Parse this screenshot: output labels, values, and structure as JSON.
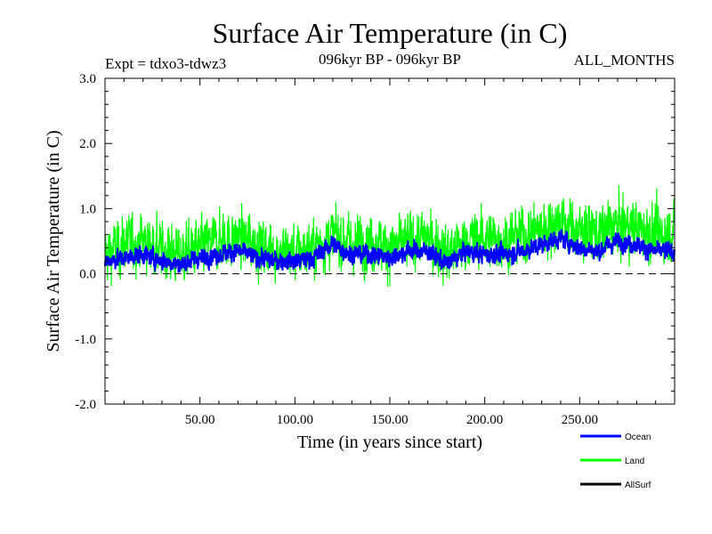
{
  "chart_data": {
    "type": "line",
    "title": "Surface Air Temperature (in C)",
    "subtitle_left": "Expt = tdxo3-tdwz3",
    "subtitle_center": "096kyr BP - 096kyr BP",
    "subtitle_right": "ALL_MONTHS",
    "xlabel": "Time (in years since start)",
    "ylabel": "Surface Air Temperature (in C)",
    "xlim": [
      0,
      300
    ],
    "ylim": [
      -2.0,
      3.0
    ],
    "x_ticks": [
      50,
      100,
      150,
      200,
      250
    ],
    "x_tick_labels": [
      "50.00",
      "100.00",
      "150.00",
      "200.00",
      "250.00"
    ],
    "y_ticks": [
      -2.0,
      -1.0,
      0.0,
      1.0,
      2.0,
      3.0
    ],
    "y_tick_labels": [
      "-2.0",
      "-1.0",
      "0.0",
      "1.0",
      "2.0",
      "3.0"
    ],
    "zero_line": "dashed",
    "grid": false,
    "legend_position": "bottom-right",
    "series": [
      {
        "name": "Land",
        "color": "#00ff00",
        "x": [
          0,
          10,
          20,
          30,
          40,
          50,
          60,
          70,
          80,
          90,
          100,
          110,
          120,
          130,
          140,
          150,
          160,
          170,
          180,
          190,
          200,
          210,
          220,
          230,
          240,
          250,
          260,
          270,
          280,
          290,
          300
        ],
        "values": [
          0.3,
          0.45,
          0.5,
          0.35,
          0.3,
          0.4,
          0.5,
          0.55,
          0.45,
          0.35,
          0.3,
          0.4,
          0.6,
          0.45,
          0.5,
          0.4,
          0.5,
          0.55,
          0.3,
          0.5,
          0.55,
          0.5,
          0.6,
          0.7,
          0.8,
          0.65,
          0.6,
          0.75,
          0.7,
          0.6,
          0.65
        ],
        "amplitude": 0.55
      },
      {
        "name": "Ocean",
        "color": "#0000ff",
        "x": [
          0,
          10,
          20,
          30,
          40,
          50,
          60,
          70,
          80,
          90,
          100,
          110,
          120,
          130,
          140,
          150,
          160,
          170,
          180,
          190,
          200,
          210,
          220,
          230,
          240,
          250,
          260,
          270,
          280,
          290,
          300
        ],
        "values": [
          0.2,
          0.25,
          0.3,
          0.2,
          0.15,
          0.25,
          0.3,
          0.35,
          0.25,
          0.2,
          0.2,
          0.25,
          0.45,
          0.3,
          0.3,
          0.25,
          0.35,
          0.35,
          0.15,
          0.35,
          0.3,
          0.3,
          0.35,
          0.45,
          0.55,
          0.4,
          0.35,
          0.5,
          0.45,
          0.35,
          0.35
        ],
        "amplitude": 0.18
      },
      {
        "name": "AllSurf",
        "color": "#000000",
        "x": [],
        "values": []
      }
    ]
  }
}
